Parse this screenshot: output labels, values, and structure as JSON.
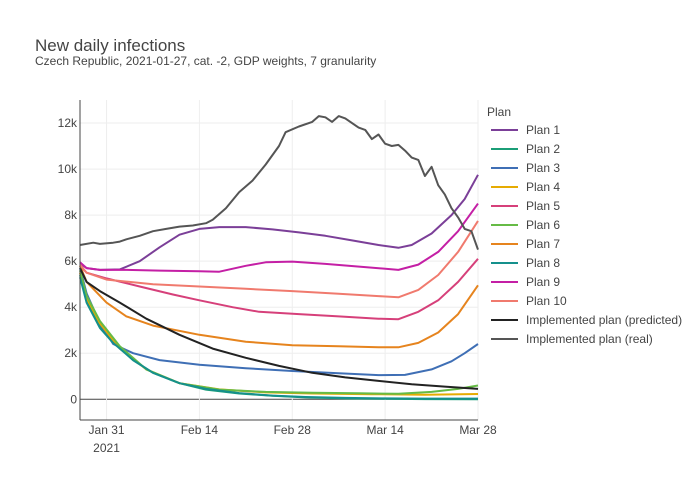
{
  "chart_data": {
    "type": "line",
    "title": "New daily infections",
    "subtitle": "Czech Republic, 2021-01-27, cat. -2, GDP weights, 7 granularity",
    "xlabel": "",
    "ylabel": "",
    "xlim": [
      "2021-01-27",
      "2021-03-28"
    ],
    "ylim": [
      -900,
      13000
    ],
    "x_ticks": [
      {
        "date": "2021-01-31",
        "label": "Jan 31",
        "sublabel": "2021"
      },
      {
        "date": "2021-02-14",
        "label": "Feb 14",
        "sublabel": ""
      },
      {
        "date": "2021-02-28",
        "label": "Feb 28",
        "sublabel": ""
      },
      {
        "date": "2021-03-14",
        "label": "Mar 14",
        "sublabel": ""
      },
      {
        "date": "2021-03-28",
        "label": "Mar 28",
        "sublabel": ""
      }
    ],
    "y_ticks": [
      {
        "value": 0,
        "label": "0"
      },
      {
        "value": 2000,
        "label": "2k"
      },
      {
        "value": 4000,
        "label": "4k"
      },
      {
        "value": 6000,
        "label": "6k"
      },
      {
        "value": 8000,
        "label": "8k"
      },
      {
        "value": 10000,
        "label": "10k"
      },
      {
        "value": 12000,
        "label": "12k"
      }
    ],
    "grid": true,
    "legend_title": "Plan",
    "legend_position": "right",
    "series": [
      {
        "name": "Plan 1",
        "color": "#7b3f98",
        "points": [
          [
            "2021-01-27",
            5900
          ],
          [
            "2021-01-28",
            5700
          ],
          [
            "2021-01-30",
            5620
          ],
          [
            "2021-02-02",
            5640
          ],
          [
            "2021-02-05",
            6000
          ],
          [
            "2021-02-08",
            6600
          ],
          [
            "2021-02-11",
            7150
          ],
          [
            "2021-02-14",
            7400
          ],
          [
            "2021-02-17",
            7480
          ],
          [
            "2021-02-21",
            7480
          ],
          [
            "2021-02-25",
            7380
          ],
          [
            "2021-03-01",
            7250
          ],
          [
            "2021-03-05",
            7100
          ],
          [
            "2021-03-09",
            6900
          ],
          [
            "2021-03-13",
            6700
          ],
          [
            "2021-03-16",
            6580
          ],
          [
            "2021-03-18",
            6700
          ],
          [
            "2021-03-21",
            7200
          ],
          [
            "2021-03-24",
            8000
          ],
          [
            "2021-03-26",
            8700
          ],
          [
            "2021-03-28",
            9750
          ]
        ]
      },
      {
        "name": "Plan 2",
        "color": "#1b9e77",
        "points": [
          [
            "2021-01-27",
            5400
          ],
          [
            "2021-01-28",
            4300
          ],
          [
            "2021-01-30",
            3200
          ],
          [
            "2021-02-01",
            2500
          ],
          [
            "2021-02-04",
            1700
          ],
          [
            "2021-02-07",
            1150
          ],
          [
            "2021-02-11",
            700
          ],
          [
            "2021-02-15",
            420
          ],
          [
            "2021-02-20",
            250
          ],
          [
            "2021-02-25",
            150
          ],
          [
            "2021-03-02",
            80
          ],
          [
            "2021-03-08",
            40
          ],
          [
            "2021-03-14",
            20
          ],
          [
            "2021-03-20",
            10
          ],
          [
            "2021-03-28",
            5
          ]
        ]
      },
      {
        "name": "Plan 3",
        "color": "#3f6fb5",
        "points": [
          [
            "2021-01-27",
            5700
          ],
          [
            "2021-01-28",
            4600
          ],
          [
            "2021-01-30",
            3300
          ],
          [
            "2021-02-01",
            2400
          ],
          [
            "2021-02-04",
            2000
          ],
          [
            "2021-02-08",
            1700
          ],
          [
            "2021-02-14",
            1500
          ],
          [
            "2021-02-21",
            1350
          ],
          [
            "2021-02-28",
            1230
          ],
          [
            "2021-03-07",
            1130
          ],
          [
            "2021-03-13",
            1050
          ],
          [
            "2021-03-17",
            1060
          ],
          [
            "2021-03-21",
            1300
          ],
          [
            "2021-03-24",
            1650
          ],
          [
            "2021-03-26",
            2000
          ],
          [
            "2021-03-28",
            2400
          ]
        ]
      },
      {
        "name": "Plan 4",
        "color": "#e6ab02",
        "points": [
          [
            "2021-01-27",
            5500
          ],
          [
            "2021-01-28",
            4400
          ],
          [
            "2021-01-30",
            3300
          ],
          [
            "2021-02-02",
            2200
          ],
          [
            "2021-02-06",
            1300
          ],
          [
            "2021-02-11",
            700
          ],
          [
            "2021-02-17",
            430
          ],
          [
            "2021-02-24",
            300
          ],
          [
            "2021-03-03",
            250
          ],
          [
            "2021-03-12",
            220
          ],
          [
            "2021-03-20",
            200
          ],
          [
            "2021-03-28",
            230
          ]
        ]
      },
      {
        "name": "Plan 5",
        "color": "#d6407a",
        "points": [
          [
            "2021-01-27",
            5800
          ],
          [
            "2021-01-28",
            5500
          ],
          [
            "2021-01-31",
            5250
          ],
          [
            "2021-02-05",
            4900
          ],
          [
            "2021-02-10",
            4550
          ],
          [
            "2021-02-14",
            4300
          ],
          [
            "2021-02-19",
            4000
          ],
          [
            "2021-02-23",
            3800
          ],
          [
            "2021-03-01",
            3700
          ],
          [
            "2021-03-07",
            3600
          ],
          [
            "2021-03-13",
            3500
          ],
          [
            "2021-03-16",
            3480
          ],
          [
            "2021-03-19",
            3800
          ],
          [
            "2021-03-22",
            4300
          ],
          [
            "2021-03-25",
            5100
          ],
          [
            "2021-03-28",
            6100
          ]
        ]
      },
      {
        "name": "Plan 6",
        "color": "#66bb46",
        "points": [
          [
            "2021-01-27",
            5600
          ],
          [
            "2021-01-28",
            4500
          ],
          [
            "2021-01-30",
            3400
          ],
          [
            "2021-02-02",
            2300
          ],
          [
            "2021-02-06",
            1300
          ],
          [
            "2021-02-11",
            700
          ],
          [
            "2021-02-17",
            420
          ],
          [
            "2021-02-24",
            320
          ],
          [
            "2021-03-03",
            280
          ],
          [
            "2021-03-10",
            260
          ],
          [
            "2021-03-16",
            240
          ],
          [
            "2021-03-21",
            320
          ],
          [
            "2021-03-25",
            450
          ],
          [
            "2021-03-28",
            600
          ]
        ]
      },
      {
        "name": "Plan 7",
        "color": "#e6841e",
        "points": [
          [
            "2021-01-27",
            5800
          ],
          [
            "2021-01-28",
            5100
          ],
          [
            "2021-01-31",
            4200
          ],
          [
            "2021-02-03",
            3600
          ],
          [
            "2021-02-07",
            3200
          ],
          [
            "2021-02-14",
            2800
          ],
          [
            "2021-02-21",
            2500
          ],
          [
            "2021-02-28",
            2350
          ],
          [
            "2021-03-07",
            2300
          ],
          [
            "2021-03-13",
            2260
          ],
          [
            "2021-03-16",
            2260
          ],
          [
            "2021-03-19",
            2450
          ],
          [
            "2021-03-22",
            2900
          ],
          [
            "2021-03-25",
            3700
          ],
          [
            "2021-03-28",
            4950
          ]
        ]
      },
      {
        "name": "Plan 8",
        "color": "#15908c",
        "points": [
          [
            "2021-01-27",
            5300
          ],
          [
            "2021-01-28",
            4200
          ],
          [
            "2021-01-30",
            3100
          ],
          [
            "2021-02-01",
            2450
          ],
          [
            "2021-02-04",
            1700
          ],
          [
            "2021-02-07",
            1150
          ],
          [
            "2021-02-11",
            700
          ],
          [
            "2021-02-15",
            450
          ],
          [
            "2021-02-20",
            270
          ],
          [
            "2021-02-25",
            160
          ],
          [
            "2021-03-02",
            100
          ],
          [
            "2021-03-08",
            60
          ],
          [
            "2021-03-14",
            40
          ],
          [
            "2021-03-20",
            30
          ],
          [
            "2021-03-28",
            30
          ]
        ]
      },
      {
        "name": "Plan 9",
        "color": "#c41fa5",
        "points": [
          [
            "2021-01-27",
            5950
          ],
          [
            "2021-01-28",
            5700
          ],
          [
            "2021-01-30",
            5620
          ],
          [
            "2021-02-03",
            5620
          ],
          [
            "2021-02-08",
            5590
          ],
          [
            "2021-02-14",
            5560
          ],
          [
            "2021-02-17",
            5540
          ],
          [
            "2021-02-21",
            5800
          ],
          [
            "2021-02-24",
            5950
          ],
          [
            "2021-02-28",
            5980
          ],
          [
            "2021-03-05",
            5880
          ],
          [
            "2021-03-11",
            5740
          ],
          [
            "2021-03-16",
            5620
          ],
          [
            "2021-03-19",
            5850
          ],
          [
            "2021-03-22",
            6400
          ],
          [
            "2021-03-25",
            7300
          ],
          [
            "2021-03-28",
            8500
          ]
        ]
      },
      {
        "name": "Plan 10",
        "color": "#f07a6e",
        "points": [
          [
            "2021-01-27",
            5850
          ],
          [
            "2021-01-28",
            5500
          ],
          [
            "2021-01-31",
            5200
          ],
          [
            "2021-02-07",
            5000
          ],
          [
            "2021-02-14",
            4900
          ],
          [
            "2021-02-21",
            4800
          ],
          [
            "2021-02-28",
            4700
          ],
          [
            "2021-03-07",
            4580
          ],
          [
            "2021-03-13",
            4480
          ],
          [
            "2021-03-16",
            4430
          ],
          [
            "2021-03-19",
            4750
          ],
          [
            "2021-03-22",
            5400
          ],
          [
            "2021-03-25",
            6400
          ],
          [
            "2021-03-28",
            7750
          ]
        ]
      },
      {
        "name": "Implemented plan (predicted)",
        "color": "#222222",
        "points": [
          [
            "2021-01-27",
            5700
          ],
          [
            "2021-01-28",
            5100
          ],
          [
            "2021-01-30",
            4700
          ],
          [
            "2021-02-02",
            4200
          ],
          [
            "2021-02-06",
            3500
          ],
          [
            "2021-02-11",
            2800
          ],
          [
            "2021-02-16",
            2200
          ],
          [
            "2021-02-21",
            1800
          ],
          [
            "2021-02-26",
            1450
          ],
          [
            "2021-03-03",
            1150
          ],
          [
            "2021-03-08",
            950
          ],
          [
            "2021-03-13",
            800
          ],
          [
            "2021-03-18",
            650
          ],
          [
            "2021-03-23",
            550
          ],
          [
            "2021-03-28",
            450
          ]
        ]
      },
      {
        "name": "Implemented plan (real)",
        "color": "#555555",
        "points": [
          [
            "2021-01-27",
            6700
          ],
          [
            "2021-01-29",
            6800
          ],
          [
            "2021-01-30",
            6750
          ],
          [
            "2021-02-01",
            6800
          ],
          [
            "2021-02-02",
            6850
          ],
          [
            "2021-02-03",
            6950
          ],
          [
            "2021-02-05",
            7100
          ],
          [
            "2021-02-07",
            7300
          ],
          [
            "2021-02-09",
            7400
          ],
          [
            "2021-02-11",
            7500
          ],
          [
            "2021-02-13",
            7550
          ],
          [
            "2021-02-15",
            7650
          ],
          [
            "2021-02-16",
            7800
          ],
          [
            "2021-02-18",
            8300
          ],
          [
            "2021-02-20",
            9000
          ],
          [
            "2021-02-22",
            9500
          ],
          [
            "2021-02-24",
            10200
          ],
          [
            "2021-02-26",
            11000
          ],
          [
            "2021-02-27",
            11600
          ],
          [
            "2021-03-01",
            11850
          ],
          [
            "2021-03-03",
            12050
          ],
          [
            "2021-03-04",
            12300
          ],
          [
            "2021-03-05",
            12250
          ],
          [
            "2021-03-06",
            12050
          ],
          [
            "2021-03-07",
            12300
          ],
          [
            "2021-03-08",
            12200
          ],
          [
            "2021-03-10",
            11800
          ],
          [
            "2021-03-11",
            11700
          ],
          [
            "2021-03-12",
            11300
          ],
          [
            "2021-03-13",
            11500
          ],
          [
            "2021-03-14",
            11100
          ],
          [
            "2021-03-15",
            11000
          ],
          [
            "2021-03-16",
            11050
          ],
          [
            "2021-03-17",
            10800
          ],
          [
            "2021-03-18",
            10500
          ],
          [
            "2021-03-19",
            10400
          ],
          [
            "2021-03-20",
            9700
          ],
          [
            "2021-03-21",
            10100
          ],
          [
            "2021-03-22",
            9300
          ],
          [
            "2021-03-23",
            8900
          ],
          [
            "2021-03-24",
            8300
          ],
          [
            "2021-03-25",
            7900
          ],
          [
            "2021-03-26",
            7400
          ],
          [
            "2021-03-27",
            7300
          ],
          [
            "2021-03-28",
            6500
          ]
        ]
      }
    ]
  }
}
